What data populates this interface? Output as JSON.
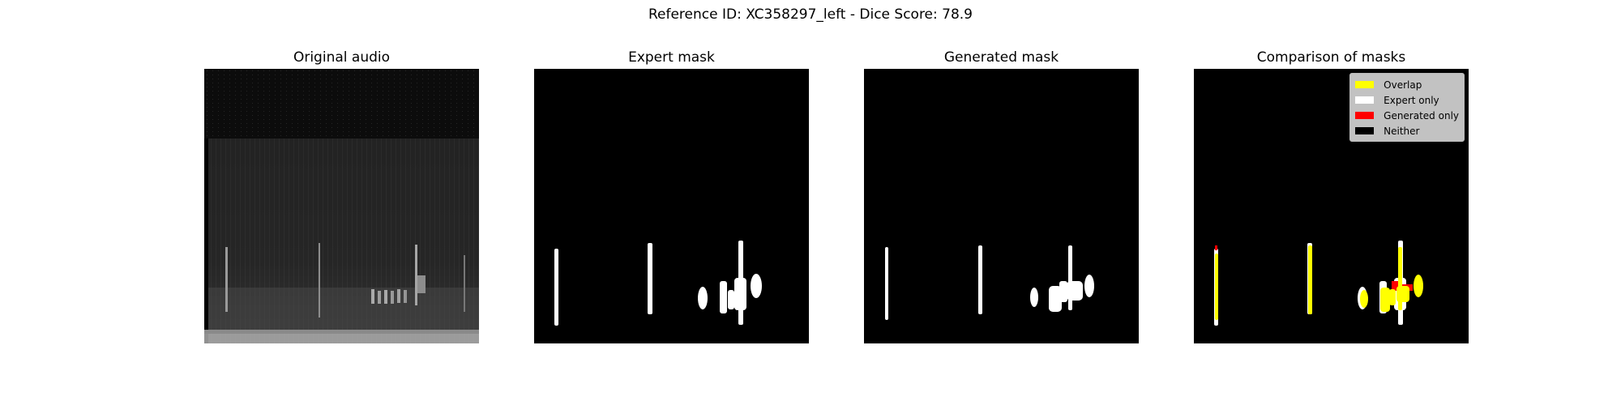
{
  "figure": {
    "suptitle": "Reference ID: XC358297_left - Dice Score: 78.9"
  },
  "panels": [
    {
      "title": "Original audio"
    },
    {
      "title": "Expert mask"
    },
    {
      "title": "Generated mask"
    },
    {
      "title": "Comparison of masks"
    }
  ],
  "legend": {
    "entries": [
      {
        "label": "Overlap",
        "color": "#ffff00"
      },
      {
        "label": "Expert only",
        "color": "#ffffff"
      },
      {
        "label": "Generated only",
        "color": "#ff0000"
      },
      {
        "label": "Neither",
        "color": "#000000"
      }
    ]
  }
}
